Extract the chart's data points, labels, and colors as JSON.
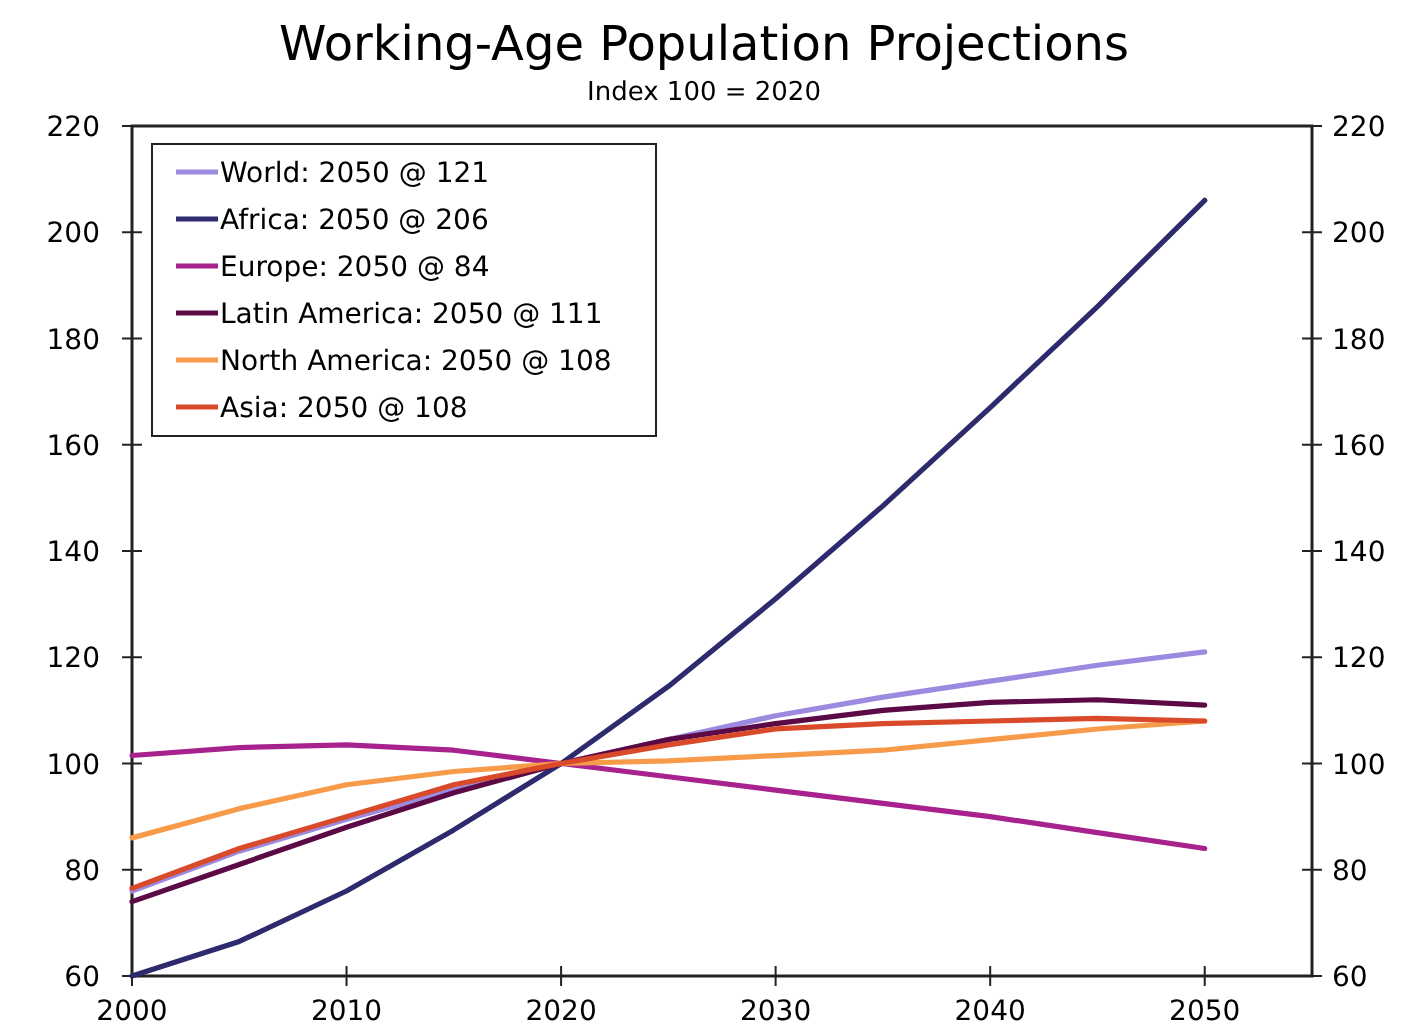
{
  "chart_data": {
    "type": "line",
    "title": "Working-Age Population Projections",
    "subtitle": "Index 100 = 2020",
    "x": [
      2000,
      2005,
      2010,
      2015,
      2020,
      2025,
      2030,
      2035,
      2040,
      2045,
      2050
    ],
    "xlim": [
      2000,
      2055
    ],
    "xticks": [
      2000,
      2010,
      2020,
      2030,
      2040,
      2050
    ],
    "ylim": [
      60,
      220
    ],
    "yticks": [
      60,
      80,
      100,
      120,
      140,
      160,
      180,
      200,
      220
    ],
    "y2lim": [
      60,
      220
    ],
    "y2ticks": [
      60,
      80,
      100,
      120,
      140,
      160,
      180,
      200,
      220
    ],
    "grid": false,
    "legend": "top left",
    "marker": "none",
    "line_style": "solid",
    "series": [
      {
        "name": "World: 2050 @ 121",
        "color": "#9b8ae0",
        "values": [
          76,
          83.5,
          89.5,
          95,
          100,
          104.5,
          109,
          112.5,
          115.5,
          118.5,
          121
        ]
      },
      {
        "name": "Africa: 2050 @ 206",
        "color": "#2e2a6e",
        "values": [
          60,
          66.5,
          76,
          87.5,
          100,
          114.5,
          131,
          148.5,
          167,
          186,
          206
        ]
      },
      {
        "name": "Europe: 2050 @ 84",
        "color": "#a8228e",
        "values": [
          101.5,
          103,
          103.5,
          102.5,
          100,
          97.5,
          95,
          92.5,
          90,
          87,
          84
        ]
      },
      {
        "name": "Latin America: 2050 @ 111",
        "color": "#5c0a45",
        "values": [
          74,
          81,
          88,
          94.5,
          100,
          104.5,
          107.5,
          110,
          111.5,
          112,
          111
        ]
      },
      {
        "name": "North America: 2050 @ 108",
        "color": "#f79a4a",
        "values": [
          86,
          91.5,
          96,
          98.5,
          100,
          100.5,
          101.5,
          102.5,
          104.5,
          106.5,
          108
        ]
      },
      {
        "name": "Asia: 2050 @ 108",
        "color": "#d94a2a",
        "values": [
          76.5,
          84,
          90,
          96,
          100,
          103.5,
          106.5,
          107.5,
          108,
          108.5,
          108
        ]
      }
    ]
  }
}
